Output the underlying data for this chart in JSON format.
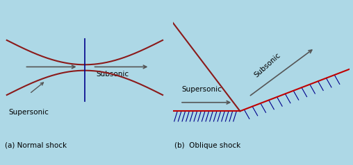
{
  "bg_color": "#add8e6",
  "shock_color": "#8b1a1a",
  "wall_color": "#c00000",
  "hatch_color": "#00008b",
  "arrow_color": "#555555",
  "shock_line_color": "#00008b",
  "title_a": "(a) Normal shock",
  "title_b": "(b)  Oblique shock",
  "label_supersonic_a": "Supersonic",
  "label_subsonic_a": "Subsonic",
  "label_supersonic_b": "Supersonic",
  "label_subsonic_b": "Subsonic",
  "font_size": 7.5
}
